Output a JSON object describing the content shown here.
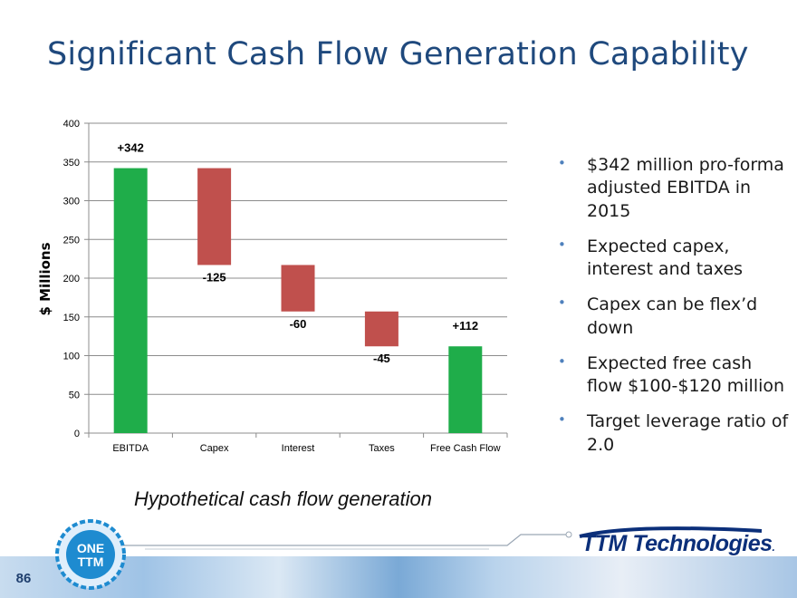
{
  "title": "Significant Cash Flow Generation Capability",
  "caption": "Hypothetical cash flow generation",
  "bullets": [
    "$342 million pro-forma adjusted EBITDA in 2015",
    "Expected capex, interest and taxes",
    "Capex can be flex’d down",
    "Expected free cash flow $100-$120 million",
    "Target leverage ratio of 2.0"
  ],
  "footer": {
    "page_number": "86",
    "logo_line1": "ONE",
    "logo_line2": "TTM",
    "brand": "TTM Technologies",
    "brand_mark": "."
  },
  "colors": {
    "title": "#1f497d",
    "positive": "#1fad4a",
    "negative": "#c0504d",
    "bullet": "#4f81bd"
  },
  "chart_data": {
    "type": "bar",
    "subtype": "waterfall",
    "categories": [
      "EBITDA",
      "Capex",
      "Interest",
      "Taxes",
      "Free Cash Flow"
    ],
    "values": [
      342,
      -125,
      -60,
      -45,
      112
    ],
    "data_labels": [
      "+342",
      "-125",
      "-60",
      "-45",
      "+112"
    ],
    "ylabel": "$ Millions",
    "ylim": [
      0,
      400
    ],
    "yticks": [
      0,
      50,
      100,
      150,
      200,
      250,
      300,
      350,
      400
    ],
    "grid": true,
    "legend": "none"
  }
}
